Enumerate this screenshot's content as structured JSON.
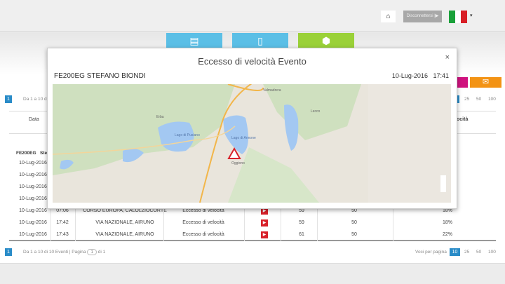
{
  "topbar": {
    "home_icon": "home-icon",
    "logout_label": "Disconnettersi |▶",
    "flag_colors": [
      "#1aa13a",
      "#ffffff",
      "#d81e26"
    ],
    "caret": "▾"
  },
  "tiles": [
    {
      "color": "#5bbfe6",
      "icon": "document-icon",
      "glyph": "▤"
    },
    {
      "color": "#5bbfe6",
      "icon": "report-icon",
      "glyph": "▯"
    },
    {
      "color": "#9ad138",
      "icon": "package-icon",
      "glyph": "⬢"
    }
  ],
  "actions": {
    "pink": "#d0127f",
    "orange": "#f39314",
    "mail_glyph": "✉"
  },
  "pagination": {
    "current_page": "1",
    "summary_top": "Da 1 a 10 di",
    "summary": "Da 1 a 10 di 10 Eventi | Pagina",
    "page_input": "1",
    "of": "di 1",
    "per_page_label": "Voci per pagina",
    "per_page_options": [
      "10",
      "25",
      "50",
      "100"
    ],
    "per_page_selected": "10"
  },
  "table": {
    "headers": {
      "date": "Data",
      "speed": "ocità"
    },
    "group": {
      "vehicle": "FE200EG",
      "driver": "Stefa"
    },
    "rows": [
      {
        "date": "10-Lug-2016"
      },
      {
        "date": "10-Lug-2016"
      },
      {
        "date": "10-Lug-2016"
      },
      {
        "date": "10-Lug-2016"
      },
      {
        "date": "10-Lug-2016",
        "time": "07:06",
        "address": "CORSO EUROPA, CALOLZIOCORTE",
        "event": "Eccesso di velocità",
        "speed": "59",
        "limit": "50",
        "pct": "18%"
      },
      {
        "date": "10-Lug-2016",
        "time": "17:42",
        "address": "VIA NAZIONALE, AIRUNO",
        "event": "Eccesso di velocità",
        "speed": "59",
        "limit": "50",
        "pct": "18%"
      },
      {
        "date": "10-Lug-2016",
        "time": "17:43",
        "address": "VIA NAZIONALE, AIRUNO",
        "event": "Eccesso di velocità",
        "speed": "61",
        "limit": "50",
        "pct": "22%"
      }
    ]
  },
  "modal": {
    "title": "Eccesso di velocità Evento",
    "close": "×",
    "vehicle": "FE200EG STEFANO BIONDI",
    "date": "10-Lug-2016",
    "time": "17:41",
    "map_labels": [
      "Lago di Pusiano",
      "Lago di Annone",
      "Lecco",
      "Oggiono",
      "Valmadrera",
      "Erba"
    ]
  }
}
